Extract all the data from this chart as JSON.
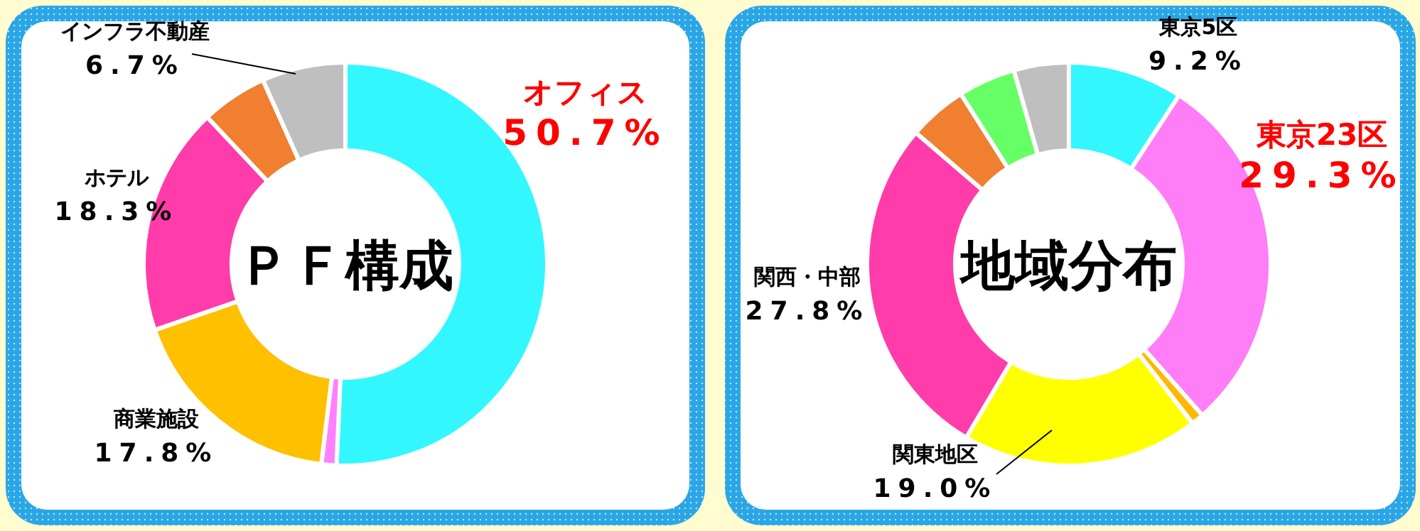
{
  "chart_data": [
    {
      "type": "donut",
      "title": "ＰＦ構成",
      "categories": [
        "オフィス",
        null,
        "商業施設",
        "ホテル",
        null,
        "インフラ不動産"
      ],
      "values": [
        50.7,
        1.2,
        17.8,
        18.3,
        5.3,
        6.7
      ],
      "colors": [
        "#33f7ff",
        "#ff80ff",
        "#ffc000",
        "#ff3caa",
        "#f07f30",
        "#bfbfbf"
      ],
      "value_labels": [
        "50.7%",
        null,
        "17.8%",
        "18.3%",
        null,
        "6.7%"
      ]
    },
    {
      "type": "donut",
      "title": "地域分布",
      "categories": [
        "東京5区",
        "東京23区",
        null,
        "関東地区",
        "関西・中部",
        null,
        null,
        null
      ],
      "values": [
        9.2,
        29.3,
        1.0,
        19.0,
        27.8,
        4.7,
        4.6,
        4.4
      ],
      "colors": [
        "#33f7ff",
        "#ff7df7",
        "#ffb800",
        "#ffff00",
        "#ff3caa",
        "#f07f30",
        "#66ff66",
        "#bfbfbf"
      ],
      "value_labels": [
        "9.2%",
        "29.3%",
        null,
        "19.0%",
        "27.8%",
        null,
        null,
        null
      ]
    }
  ]
}
